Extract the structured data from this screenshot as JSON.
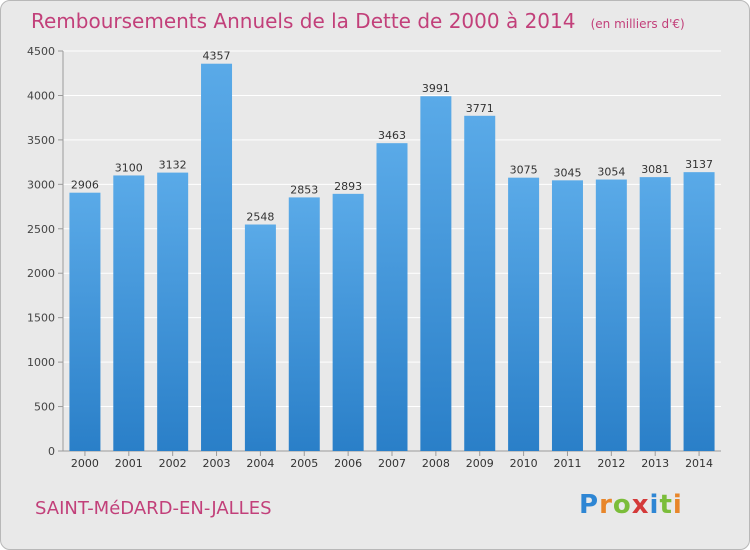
{
  "title": "Remboursements Annuels de la Dette de 2000 à 2014",
  "unit_note": "(en milliers d'€)",
  "city": "SAINT-MéDARD-EN-JALLES",
  "logo_text": "Proxiti",
  "colors": {
    "title": "#c2407a",
    "bar_light": "#5aaae8",
    "bar_dark": "#2a7fc8",
    "background": "#e9e9e9",
    "grid": "#ffffff"
  },
  "chart_data": {
    "type": "bar",
    "categories": [
      "2000",
      "2001",
      "2002",
      "2003",
      "2004",
      "2005",
      "2006",
      "2007",
      "2008",
      "2009",
      "2010",
      "2011",
      "2012",
      "2013",
      "2014"
    ],
    "values": [
      2906,
      3100,
      3132,
      4357,
      2548,
      2853,
      2893,
      3463,
      3991,
      3771,
      3075,
      3045,
      3054,
      3081,
      3137
    ],
    "ylim": [
      0,
      4500
    ],
    "yticks": [
      0,
      500,
      1000,
      1500,
      2000,
      2500,
      3000,
      3500,
      4000,
      4500
    ],
    "grid": true,
    "data_labels": true
  }
}
